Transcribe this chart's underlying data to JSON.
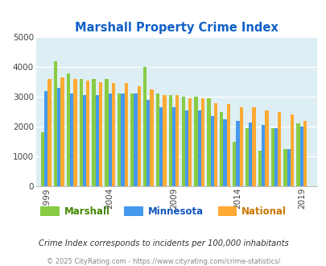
{
  "title": "Marshall Property Crime Index",
  "title_color": "#1060c8",
  "subtitle": "Crime Index corresponds to incidents per 100,000 inhabitants",
  "subtitle_color": "#333333",
  "copyright": "© 2025 CityRating.com - https://www.cityrating.com/crime-statistics/",
  "copyright_color": "#888888",
  "years": [
    1999,
    2000,
    2001,
    2002,
    2003,
    2004,
    2005,
    2006,
    2007,
    2008,
    2009,
    2010,
    2011,
    2012,
    2013,
    2014,
    2015,
    2016,
    2017,
    2018,
    2019
  ],
  "marshall": [
    1800,
    4200,
    3800,
    3600,
    3600,
    3600,
    3100,
    3100,
    4000,
    3100,
    3050,
    3000,
    3000,
    2950,
    2500,
    1500,
    1950,
    1200,
    1950,
    1250,
    2100
  ],
  "minnesota": [
    3200,
    3300,
    3100,
    3050,
    3050,
    3100,
    3100,
    3100,
    2900,
    2650,
    2650,
    2550,
    2550,
    2350,
    2250,
    2200,
    2150,
    2050,
    1950,
    1250,
    2000
  ],
  "national": [
    3600,
    3650,
    3600,
    3550,
    3500,
    3450,
    3450,
    3350,
    3250,
    3050,
    3050,
    2950,
    2950,
    2800,
    2750,
    2650,
    2650,
    2550,
    2500,
    2400,
    2200
  ],
  "bar_colors": [
    "#88cc44",
    "#4499ee",
    "#ffaa33"
  ],
  "legend_labels": [
    "Marshall",
    "Minnesota",
    "National"
  ],
  "legend_label_colors": [
    "#448800",
    "#1155bb",
    "#cc7700"
  ],
  "ylim": [
    0,
    5000
  ],
  "yticks": [
    0,
    1000,
    2000,
    3000,
    4000,
    5000
  ],
  "xtick_years": [
    1999,
    2004,
    2009,
    2014,
    2019
  ],
  "bg_color": "#ddeef4",
  "fig_bg": "#ffffff",
  "bar_width": 0.27
}
